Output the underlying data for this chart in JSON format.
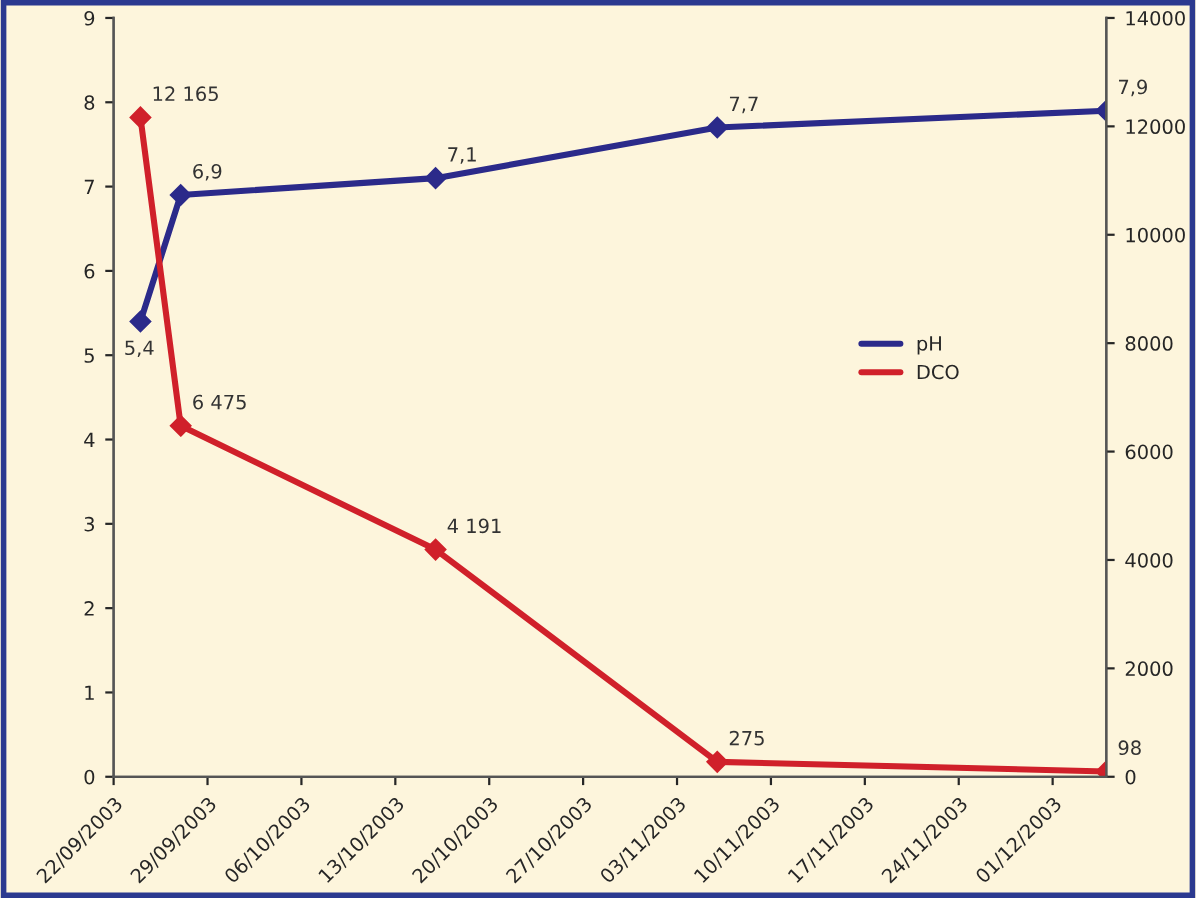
{
  "chart_data": {
    "type": "line",
    "x": [
      "2003-09-24",
      "2003-09-27",
      "2003-10-16",
      "2003-11-06",
      "2003-12-05"
    ],
    "xlim": [
      "2003-09-22",
      "2003-12-05"
    ],
    "xticks": [
      {
        "value": "2003-09-22",
        "label": "22/09/2003"
      },
      {
        "value": "2003-09-29",
        "label": "29/09/2003"
      },
      {
        "value": "2003-10-06",
        "label": "06/10/2003"
      },
      {
        "value": "2003-10-13",
        "label": "13/10/2003"
      },
      {
        "value": "2003-10-20",
        "label": "20/10/2003"
      },
      {
        "value": "2003-10-27",
        "label": "27/10/2003"
      },
      {
        "value": "2003-11-03",
        "label": "03/11/2003"
      },
      {
        "value": "2003-11-10",
        "label": "10/11/2003"
      },
      {
        "value": "2003-11-17",
        "label": "17/11/2003"
      },
      {
        "value": "2003-11-24",
        "label": "24/11/2003"
      },
      {
        "value": "2003-12-01",
        "label": "01/12/2003"
      }
    ],
    "ylim": [
      0,
      9
    ],
    "yticks": [
      0,
      1,
      2,
      3,
      4,
      5,
      6,
      7,
      8,
      9
    ],
    "y2lim": [
      0,
      14000
    ],
    "y2ticks": [
      0,
      2000,
      4000,
      6000,
      8000,
      10000,
      12000,
      14000
    ],
    "series": [
      {
        "name": "pH",
        "color": "#2b2a8a",
        "values": [
          5.4,
          6.9,
          7.1,
          7.7,
          7.9
        ],
        "value_labels": [
          "5,4",
          "6,9",
          "7,1",
          "7,7",
          "7,9"
        ]
      },
      {
        "name": "DCO",
        "color": "#d0202a",
        "axis": "y2",
        "values": [
          12165,
          6475,
          4191,
          275,
          98
        ],
        "value_labels": [
          "12 165",
          "6 475",
          "4 191",
          "275",
          "98"
        ]
      }
    ],
    "legend": "right",
    "grid": false,
    "marker": "diamond",
    "line_style": "solid"
  }
}
